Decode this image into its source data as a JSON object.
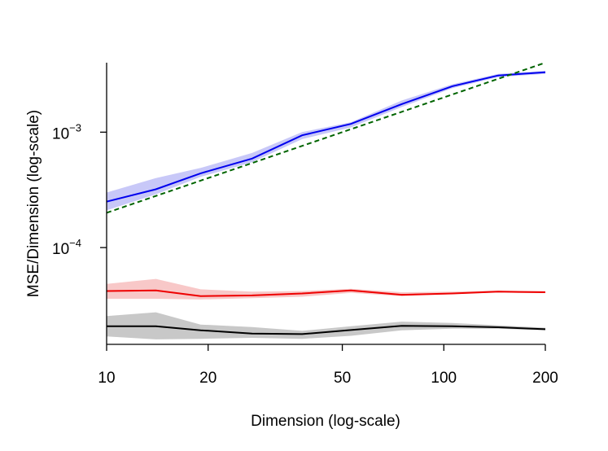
{
  "chart_data": {
    "type": "line",
    "title": "",
    "xlabel": "Dimension (log-scale)",
    "ylabel": "MSE/Dimension (log-scale)",
    "x_scale": "log",
    "y_scale": "log",
    "xlim": [
      10,
      200
    ],
    "ylim": [
      1.45e-05,
      0.004
    ],
    "x_ticks": [
      10,
      20,
      50,
      100,
      200
    ],
    "x_tick_labels": [
      "10",
      "20",
      "50",
      "100",
      "200"
    ],
    "y_ticks": [
      {
        "value": 0.001,
        "base": "10",
        "exponent": "−3"
      },
      {
        "value": 0.0001,
        "base": "10",
        "exponent": "−4"
      }
    ],
    "grid": false,
    "legend": "none",
    "x": [
      10,
      14,
      19,
      27,
      38,
      53,
      75,
      106,
      145,
      200
    ],
    "series": [
      {
        "name": "blue",
        "color": "#0000ee",
        "band_color": "#c8c8f8",
        "style": "solid",
        "values": [
          0.00025,
          0.00032,
          0.00044,
          0.00059,
          0.00094,
          0.00118,
          0.00175,
          0.0025,
          0.0031,
          0.0033
        ],
        "lower": [
          0.00021,
          0.00029,
          0.00041,
          0.00055,
          0.00087,
          0.0011,
          0.00165,
          0.0024,
          0.003,
          0.0032
        ],
        "upper": [
          0.0003,
          0.0004,
          0.00049,
          0.00066,
          0.001,
          0.00122,
          0.00188,
          0.0026,
          0.0032,
          0.0034
        ]
      },
      {
        "name": "reference",
        "color": "#006400",
        "style": "dashed",
        "x": [
          10,
          200
        ],
        "values": [
          0.0002,
          0.004
        ]
      },
      {
        "name": "red",
        "color": "#ee0000",
        "band_color": "#f8c8c8",
        "style": "solid",
        "values": [
          4.2e-05,
          4.25e-05,
          3.8e-05,
          3.85e-05,
          4e-05,
          4.25e-05,
          3.9e-05,
          4e-05,
          4.15e-05,
          4.1e-05
        ],
        "lower": [
          3.6e-05,
          3.6e-05,
          3.55e-05,
          3.65e-05,
          3.75e-05,
          4.05e-05,
          3.8e-05,
          3.95e-05,
          4.1e-05,
          4.05e-05
        ],
        "upper": [
          4.85e-05,
          5.35e-05,
          4.35e-05,
          4.15e-05,
          4.2e-05,
          4.4e-05,
          4.1e-05,
          4.15e-05,
          4.25e-05,
          4.2e-05
        ]
      },
      {
        "name": "black",
        "color": "#000000",
        "band_color": "#c8c8c8",
        "style": "solid",
        "values": [
          2.08e-05,
          2.08e-05,
          1.92e-05,
          1.8e-05,
          1.78e-05,
          1.93e-05,
          2.1e-05,
          2.08e-05,
          2.04e-05,
          1.96e-05
        ],
        "lower": [
          1.7e-05,
          1.6e-05,
          1.62e-05,
          1.65e-05,
          1.62e-05,
          1.72e-05,
          1.92e-05,
          1.98e-05,
          1.98e-05,
          1.92e-05
        ],
        "upper": [
          2.55e-05,
          2.75e-05,
          2.15e-05,
          2.05e-05,
          1.9e-05,
          2.08e-05,
          2.28e-05,
          2.22e-05,
          2.12e-05,
          2.02e-05
        ]
      }
    ]
  }
}
